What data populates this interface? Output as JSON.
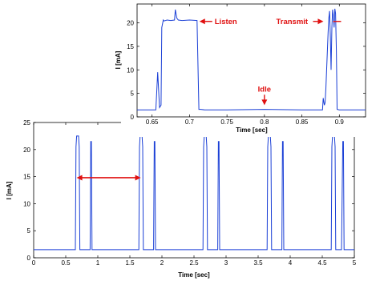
{
  "chart_data": [
    {
      "type": "line",
      "panel": "main",
      "title": "",
      "xlabel": "Time [sec]",
      "ylabel": "I [mA]",
      "xlim": [
        0,
        5
      ],
      "ylim": [
        0,
        25
      ],
      "xticks": [
        "0",
        "0.5",
        "1",
        "1.5",
        "2",
        "2.5",
        "3",
        "3.5",
        "4",
        "4.5",
        "5"
      ],
      "yticks": [
        "0",
        "5",
        "10",
        "15",
        "20",
        "25"
      ],
      "grid": false,
      "color": "#1a3fd6",
      "baseline_current": 1.5,
      "series": [
        {
          "x": [
            0,
            0.05,
            0.1,
            0.15,
            0.2,
            0.25,
            0.3,
            0.35,
            0.4,
            0.45,
            0.5,
            0.55,
            0.6,
            0.65,
            0.66,
            0.67,
            0.7,
            0.71,
            0.72,
            0.75,
            0.8,
            0.85,
            0.88,
            0.89,
            0.9,
            0.91,
            0.95,
            1.0,
            1.05,
            1.1,
            1.15,
            1.2,
            1.25,
            1.3,
            1.35,
            1.4,
            1.45,
            1.5,
            1.55,
            1.6,
            1.64,
            1.65,
            1.66,
            1.69,
            1.7,
            1.71,
            1.75,
            1.8,
            1.85,
            1.87,
            1.88,
            1.89,
            1.9,
            1.95,
            2.0,
            2.05,
            2.1,
            2.15,
            2.2,
            2.25,
            2.3,
            2.35,
            2.4,
            2.45,
            2.5,
            2.55,
            2.6,
            2.64,
            2.65,
            2.66,
            2.69,
            2.7,
            2.71,
            2.75,
            2.8,
            2.85,
            2.87,
            2.88,
            2.89,
            2.9,
            2.95,
            3.0,
            3.05,
            3.1,
            3.15,
            3.2,
            3.25,
            3.3,
            3.35,
            3.4,
            3.45,
            3.5,
            3.55,
            3.6,
            3.64,
            3.65,
            3.66,
            3.69,
            3.7,
            3.71,
            3.75,
            3.8,
            3.85,
            3.87,
            3.88,
            3.89,
            3.9,
            3.95,
            4.0,
            4.05,
            4.1,
            4.15,
            4.2,
            4.25,
            4.3,
            4.35,
            4.4,
            4.45,
            4.5,
            4.55,
            4.6,
            4.64,
            4.65,
            4.66,
            4.69,
            4.7,
            4.71,
            4.75,
            4.8,
            4.82,
            4.83,
            4.84,
            4.85,
            4.9,
            4.95,
            5.0
          ],
          "y": [
            1.5,
            1.5,
            1.5,
            1.5,
            1.5,
            1.5,
            1.5,
            1.5,
            1.5,
            1.5,
            1.5,
            1.5,
            1.5,
            1.5,
            20.5,
            22.5,
            22.5,
            20.5,
            1.5,
            1.5,
            1.5,
            1.5,
            1.5,
            21.5,
            21.5,
            1.5,
            1.5,
            1.5,
            1.5,
            1.5,
            1.5,
            1.5,
            1.5,
            1.5,
            1.5,
            1.5,
            1.5,
            1.5,
            1.5,
            1.5,
            1.5,
            20.5,
            22.5,
            22.5,
            20.5,
            1.5,
            1.5,
            1.5,
            1.5,
            1.5,
            21.5,
            21.5,
            1.5,
            1.5,
            1.5,
            1.5,
            1.5,
            1.5,
            1.5,
            1.5,
            1.5,
            1.5,
            1.5,
            1.5,
            1.5,
            1.5,
            1.5,
            1.5,
            20.5,
            22.5,
            22.5,
            20.5,
            1.5,
            1.5,
            1.5,
            1.5,
            1.5,
            21.5,
            21.5,
            1.5,
            1.5,
            1.5,
            1.5,
            1.5,
            1.5,
            1.5,
            1.5,
            1.5,
            1.5,
            1.5,
            1.5,
            1.5,
            1.5,
            1.5,
            1.5,
            20.5,
            22.5,
            22.5,
            20.5,
            1.5,
            1.5,
            1.5,
            1.5,
            1.5,
            21.5,
            21.5,
            1.5,
            1.5,
            1.5,
            1.5,
            1.5,
            1.5,
            1.5,
            1.5,
            1.5,
            1.5,
            1.5,
            1.5,
            1.5,
            1.5,
            1.5,
            1.5,
            20.5,
            22.5,
            22.5,
            20.5,
            1.5,
            1.5,
            1.5,
            21.5,
            21.5,
            1.5,
            1.5,
            1.5,
            1.5,
            1.5
          ]
        }
      ],
      "annotations": [
        {
          "type": "double-arrow",
          "x1": 0.67,
          "x2": 1.67,
          "y": 14.8,
          "color": "#e01010"
        }
      ]
    },
    {
      "type": "line",
      "panel": "inset",
      "title": "",
      "xlabel": "Time [sec]",
      "ylabel": "I [mA]",
      "xlim": [
        0.63,
        0.935
      ],
      "ylim": [
        0,
        24
      ],
      "xticks": [
        "0.65",
        "0.7",
        "0.75",
        "0.8",
        "0.85",
        "0.9"
      ],
      "yticks": [
        "0",
        "5",
        "10",
        "15",
        "20"
      ],
      "grid": false,
      "color": "#1a3fd6",
      "series": [
        {
          "x": [
            0.63,
            0.655,
            0.6575,
            0.66,
            0.662,
            0.663,
            0.665,
            0.666,
            0.67,
            0.675,
            0.68,
            0.681,
            0.683,
            0.685,
            0.69,
            0.7,
            0.71,
            0.7125,
            0.715,
            0.72,
            0.75,
            0.8,
            0.85,
            0.8775,
            0.8785,
            0.88,
            0.881,
            0.882,
            0.885,
            0.886,
            0.887,
            0.888,
            0.889,
            0.89,
            0.891,
            0.892,
            0.893,
            0.894,
            0.895,
            0.896,
            0.897,
            0.9,
            0.935
          ],
          "y": [
            1.5,
            1.5,
            9.5,
            2.0,
            2.5,
            19.0,
            20.6,
            20.4,
            20.6,
            20.5,
            20.6,
            22.8,
            21.0,
            20.6,
            20.5,
            20.6,
            20.5,
            1.6,
            1.6,
            1.5,
            1.5,
            1.6,
            1.5,
            1.5,
            4.0,
            2.5,
            3.0,
            6.0,
            18.0,
            21.0,
            22.5,
            17.0,
            10.0,
            19.0,
            22.8,
            21.5,
            19.0,
            23.0,
            22.0,
            14.0,
            1.6,
            1.5,
            1.5
          ]
        }
      ],
      "annotations": [
        {
          "type": "arrow-label",
          "text": "Listen",
          "x": 0.71,
          "y": 20.3
        },
        {
          "type": "arrow-label",
          "text": "Transmit",
          "x": 0.882,
          "y": 20.3
        },
        {
          "type": "down-arrow-label",
          "text": "Idle",
          "x": 0.8,
          "y": 2.5
        }
      ]
    }
  ]
}
